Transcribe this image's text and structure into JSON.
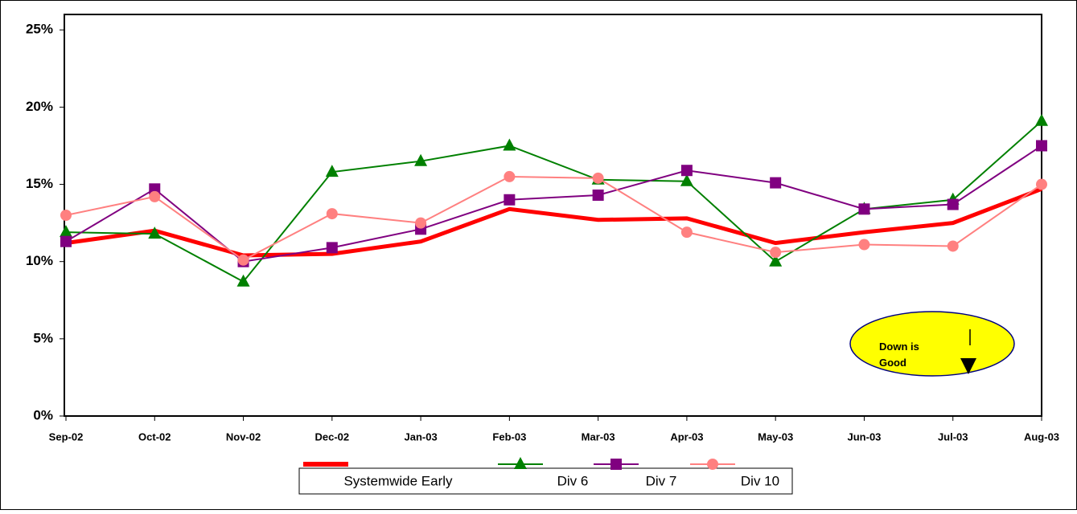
{
  "chart_data": {
    "type": "line",
    "categories": [
      "Sep-02",
      "Oct-02",
      "Nov-02",
      "Dec-02",
      "Jan-03",
      "Feb-03",
      "Mar-03",
      "Apr-03",
      "May-03",
      "Jun-03",
      "Jul-03",
      "Aug-03"
    ],
    "series": [
      {
        "name": "Systemwide Early",
        "color": "#ff0000",
        "marker": "none",
        "values": [
          11.2,
          12.0,
          10.4,
          10.5,
          11.3,
          13.4,
          12.7,
          12.8,
          11.2,
          11.9,
          12.5,
          14.7
        ]
      },
      {
        "name": "Div 6",
        "color": "#008000",
        "marker": "triangle",
        "values": [
          11.9,
          11.8,
          8.7,
          15.8,
          16.5,
          17.5,
          15.3,
          15.2,
          10.0,
          13.4,
          14.0,
          19.1
        ]
      },
      {
        "name": "Div 7",
        "color": "#800080",
        "marker": "square",
        "values": [
          11.3,
          14.7,
          10.0,
          10.9,
          12.1,
          14.0,
          14.3,
          15.9,
          15.1,
          13.4,
          13.7,
          17.5
        ]
      },
      {
        "name": "Div 10",
        "color": "#ff8080",
        "marker": "circle",
        "values": [
          13.0,
          14.2,
          10.1,
          13.1,
          12.5,
          15.5,
          15.4,
          11.9,
          10.6,
          11.1,
          11.0,
          15.0
        ]
      }
    ],
    "ylim": [
      0,
      26
    ],
    "yticks": [
      {
        "value": 0,
        "label": "0%"
      },
      {
        "value": 5,
        "label": "5%"
      },
      {
        "value": 10,
        "label": "10%"
      },
      {
        "value": 15,
        "label": "15%"
      },
      {
        "value": 20,
        "label": "20%"
      },
      {
        "value": 25,
        "label": "25%"
      }
    ],
    "grid": false,
    "legend": "bottom",
    "annotation": "Down is Good"
  }
}
